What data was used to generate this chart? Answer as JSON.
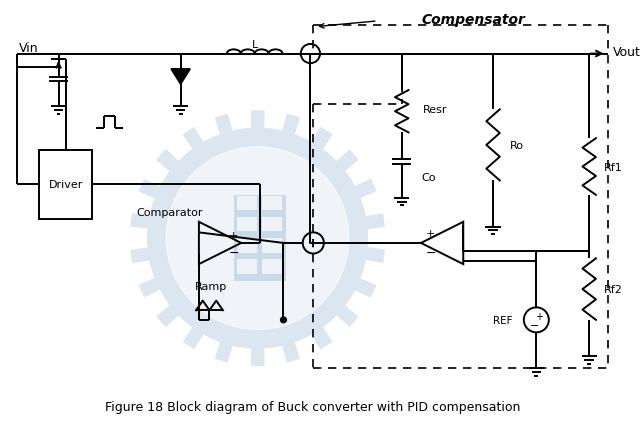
{
  "title": "Figure 18 Block diagram of Buck converter with PID compensation",
  "compensator_label": "Compensator",
  "vin_label": "Vin",
  "vout_label": "Vout",
  "L_label": "L",
  "resr_label": "Resr",
  "co_label": "Co",
  "ro_label": "Ro",
  "rf1_label": "Rf1",
  "rf2_label": "Rf2",
  "ref_label": "REF",
  "driver_label": "Driver",
  "comparator_label": "Comparator",
  "ramp_label": "Ramp",
  "bg_color": "#ffffff",
  "lc": "#000000",
  "wm_color": "#b0c8e0",
  "title_fontsize": 9
}
